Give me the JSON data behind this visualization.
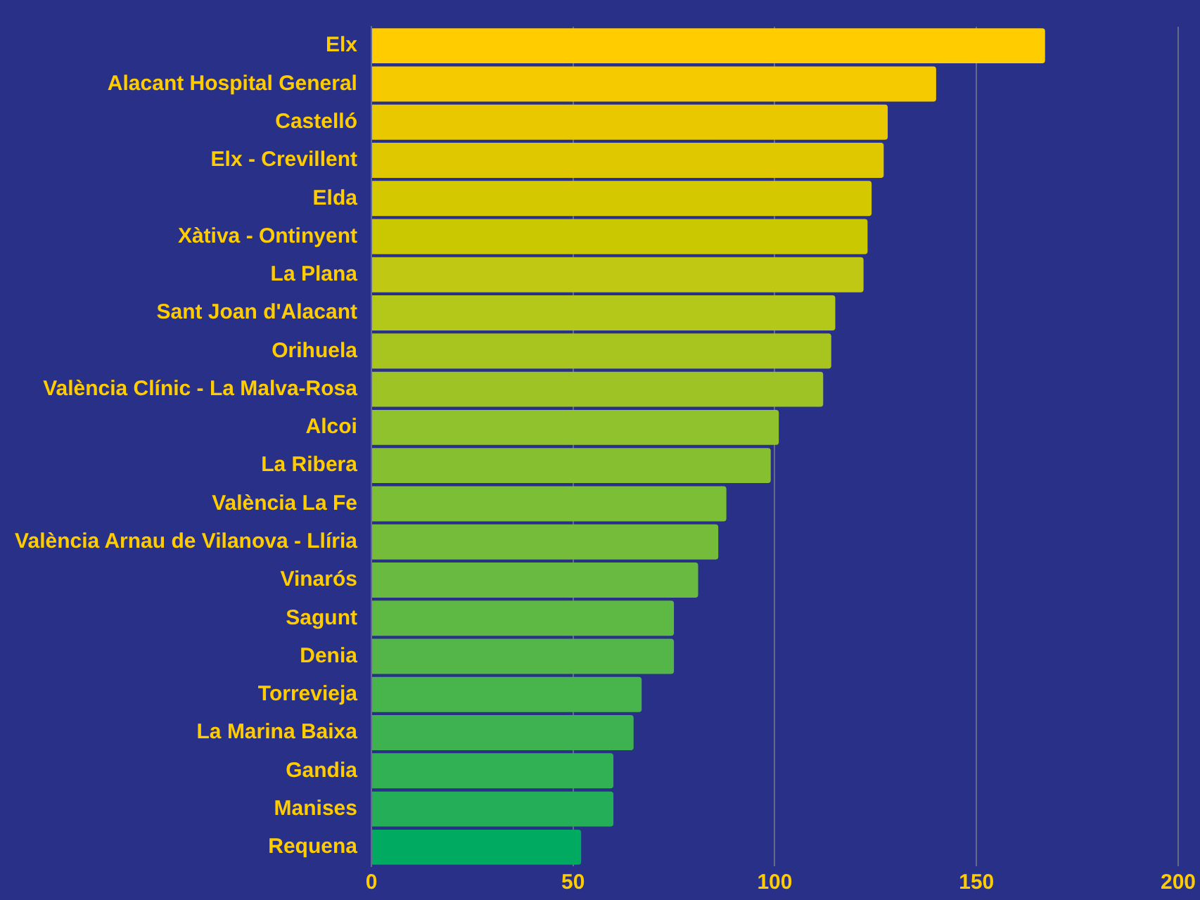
{
  "chart_data": {
    "type": "bar",
    "orientation": "horizontal",
    "categories": [
      "Elx",
      "Alacant Hospital General",
      "Castelló",
      "Elx - Crevillent",
      "Elda",
      "Xàtiva - Ontinyent",
      "La Plana",
      "Sant Joan d'Alacant",
      "Orihuela",
      "València Clínic - La Malva-Rosa",
      "Alcoi",
      "La Ribera",
      "València La Fe",
      "València Arnau de Vilanova - Llíria",
      "Vinarós",
      "Sagunt",
      "Denia",
      "Torrevieja",
      "La Marina Baixa",
      "Gandia",
      "Manises",
      "Requena"
    ],
    "values": [
      167,
      140,
      128,
      127,
      124,
      123,
      122,
      115,
      114,
      112,
      101,
      99,
      88,
      86,
      81,
      75,
      75,
      67,
      65,
      60,
      60,
      52
    ],
    "colors": [
      "#ffcc00",
      "#f5cb00",
      "#eac800",
      "#dfc800",
      "#d4c800",
      "#cac800",
      "#c0c814",
      "#b4c81a",
      "#a8c41e",
      "#9dc424",
      "#8fc22c",
      "#86c030",
      "#7cbe36",
      "#74bc3a",
      "#68ba40",
      "#5eb844",
      "#54b648",
      "#48b44c",
      "#3eb250",
      "#32b054",
      "#24ae58",
      "#00aa60"
    ],
    "xlim": [
      0,
      200
    ],
    "xticks": [
      0,
      50,
      100,
      150,
      200
    ],
    "grid": "x"
  }
}
